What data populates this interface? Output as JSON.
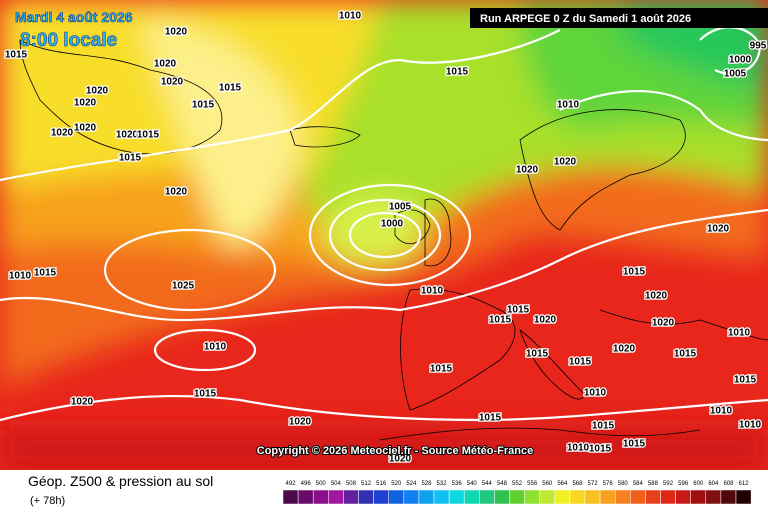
{
  "header": {
    "date": "Mardi 4 août 2026",
    "time": "8:00 locale",
    "run": "Run ARPEGE 0 Z du Samedi 1 août 2026"
  },
  "copyright": "Copyright © 2026 Meteociel.fr - Source Météo-France",
  "footer": {
    "title": "Géop. Z500 & pression au sol",
    "lead": "(+ 78h)"
  },
  "scale": {
    "values": [
      492,
      496,
      500,
      504,
      508,
      512,
      516,
      520,
      524,
      528,
      532,
      536,
      540,
      544,
      548,
      552,
      556,
      560,
      564,
      568,
      572,
      576,
      580,
      584,
      588,
      592,
      596,
      600,
      604,
      608,
      612
    ]
  },
  "isobar_labels": [
    "1010",
    "1020",
    "1015",
    "1020",
    "1015",
    "1020",
    "1020",
    "1020",
    "1015",
    "1020",
    "1020",
    "1020",
    "1015",
    "1015",
    "1015",
    "995",
    "1000",
    "1005",
    "1010",
    "1020",
    "1020",
    "1020",
    "1005",
    "1000",
    "1020",
    "1015",
    "1010",
    "1025",
    "1015",
    "1010",
    "1020",
    "1015",
    "1020",
    "1020",
    "1015",
    "1010",
    "1010",
    "1015",
    "1020",
    "1015",
    "1015",
    "1015",
    "1015",
    "1020",
    "1010",
    "1015",
    "1010",
    "1020",
    "1015",
    "1015",
    "1010",
    "1015",
    "1015",
    "1020",
    "1010"
  ]
}
